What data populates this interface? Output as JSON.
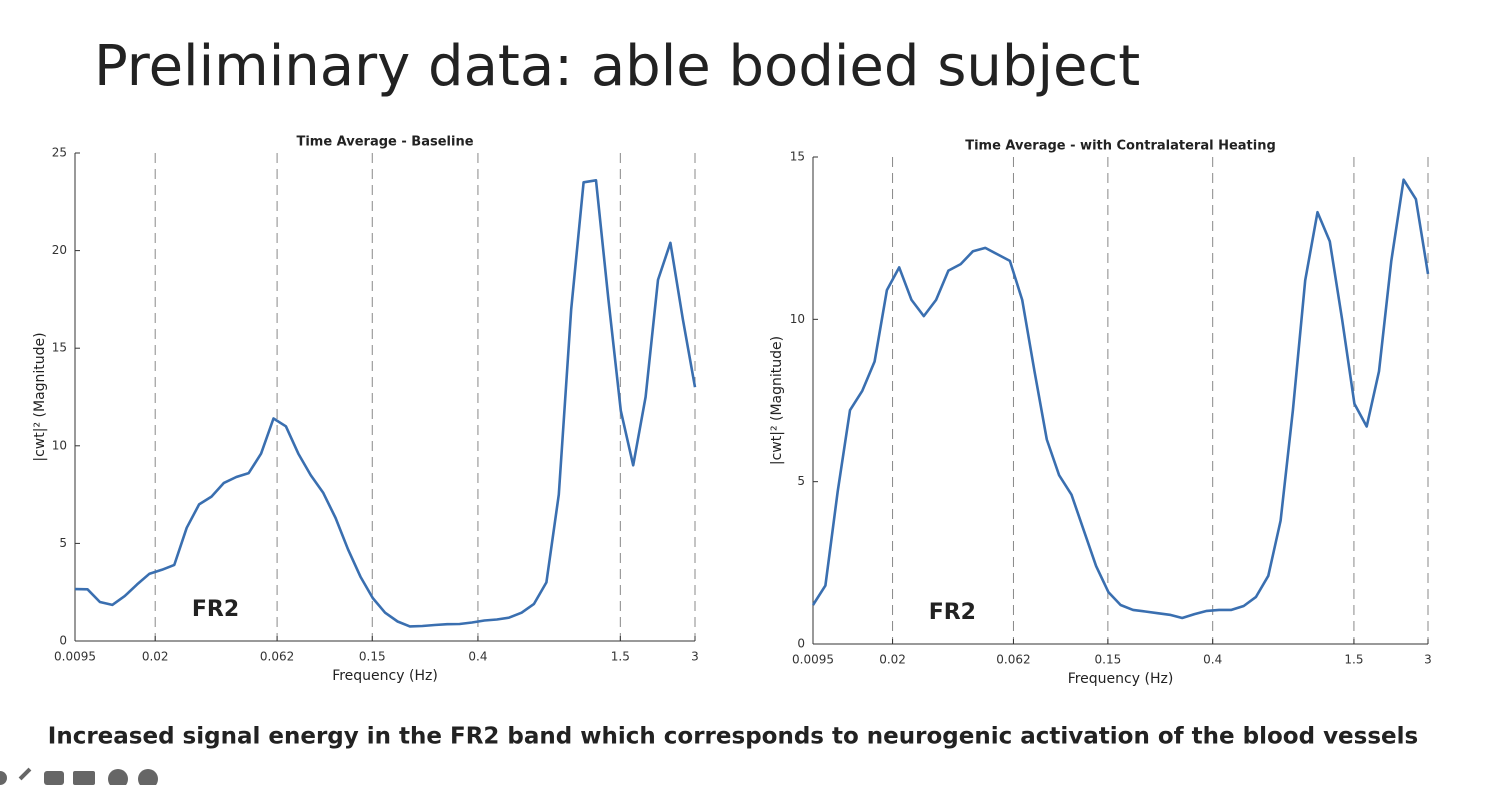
{
  "title": "Preliminary data: able bodied subject",
  "caption": "Increased signal energy in the FR2 band which corresponds to neurogenic activation of the blood vessels",
  "chart_data": [
    {
      "type": "line",
      "title": "Time Average - Baseline",
      "x_label": "Frequency (Hz)",
      "y_label": "|cwt|² (Magnitude)",
      "annotation": "FR2",
      "xscale": "log",
      "grid": "dashed-x",
      "xlim": [
        0.0095,
        3
      ],
      "xticks": [
        0.0095,
        0.02,
        0.062,
        0.15,
        0.4,
        1.5,
        3
      ],
      "ylim": [
        0,
        25
      ],
      "yticks": [
        0,
        5,
        10,
        15,
        20,
        25
      ],
      "x": [
        0.0095,
        0.01067,
        0.01197,
        0.01343,
        0.01507,
        0.0169,
        0.01897,
        0.02128,
        0.02388,
        0.02679,
        0.03006,
        0.03373,
        0.03784,
        0.04246,
        0.04764,
        0.05346,
        0.05998,
        0.0673,
        0.07551,
        0.08472,
        0.09506,
        0.1067,
        0.1197,
        0.1343,
        0.1507,
        0.169,
        0.1897,
        0.2128,
        0.2388,
        0.2679,
        0.3006,
        0.3373,
        0.3784,
        0.4246,
        0.4764,
        0.5346,
        0.5998,
        0.673,
        0.7551,
        0.8472,
        0.9506,
        1.067,
        1.197,
        1.343,
        1.507,
        1.69,
        1.897,
        2.128,
        2.388,
        2.679,
        3
      ],
      "series": [
        {
          "color": "#3a6fb0",
          "values": [
            2.66,
            2.65,
            2.0,
            1.85,
            2.3,
            2.9,
            3.45,
            3.65,
            3.9,
            5.8,
            7.0,
            7.4,
            8.1,
            8.4,
            8.6,
            9.6,
            11.4,
            11.0,
            9.6,
            8.5,
            7.6,
            6.3,
            4.7,
            3.3,
            2.2,
            1.45,
            1.0,
            0.75,
            0.77,
            0.82,
            0.86,
            0.87,
            0.95,
            1.05,
            1.1,
            1.2,
            1.45,
            1.9,
            3.0,
            7.5,
            17.0,
            23.5,
            23.6,
            17.5,
            11.8,
            9.0,
            12.5,
            18.5,
            20.4,
            16.5,
            13.0
          ]
        }
      ]
    },
    {
      "type": "line",
      "title": "Time Average - with Contralateral Heating",
      "x_label": "Frequency (Hz)",
      "y_label": "|cwt|² (Magnitude)",
      "annotation": "FR2",
      "xscale": "log",
      "grid": "dashed-x",
      "xlim": [
        0.0095,
        3
      ],
      "xticks": [
        0.0095,
        0.02,
        0.062,
        0.15,
        0.4,
        1.5,
        3
      ],
      "ylim": [
        0,
        15
      ],
      "yticks": [
        0,
        5,
        10,
        15
      ],
      "x": [
        0.0095,
        0.01067,
        0.01197,
        0.01343,
        0.01507,
        0.0169,
        0.01897,
        0.02128,
        0.02388,
        0.02679,
        0.03006,
        0.03373,
        0.03784,
        0.04246,
        0.04764,
        0.05346,
        0.05998,
        0.0673,
        0.07551,
        0.08472,
        0.09506,
        0.1067,
        0.1197,
        0.1343,
        0.1507,
        0.169,
        0.1897,
        0.2128,
        0.2388,
        0.2679,
        0.3006,
        0.3373,
        0.3784,
        0.4246,
        0.4764,
        0.5346,
        0.5998,
        0.673,
        0.7551,
        0.8472,
        0.9506,
        1.067,
        1.197,
        1.343,
        1.507,
        1.69,
        1.897,
        2.128,
        2.388,
        2.679,
        3
      ],
      "series": [
        {
          "color": "#3a6fb0",
          "values": [
            1.2,
            1.8,
            4.7,
            7.2,
            7.8,
            8.7,
            10.9,
            11.6,
            10.6,
            10.1,
            10.6,
            11.5,
            11.7,
            12.1,
            12.2,
            12.0,
            11.8,
            10.6,
            8.4,
            6.3,
            5.2,
            4.6,
            3.5,
            2.4,
            1.6,
            1.2,
            1.05,
            1.0,
            0.95,
            0.9,
            0.8,
            0.92,
            1.02,
            1.05,
            1.05,
            1.17,
            1.45,
            2.1,
            3.8,
            7.2,
            11.2,
            13.3,
            12.4,
            10.0,
            7.4,
            6.7,
            8.4,
            11.8,
            14.3,
            13.7,
            11.4
          ]
        }
      ]
    }
  ]
}
